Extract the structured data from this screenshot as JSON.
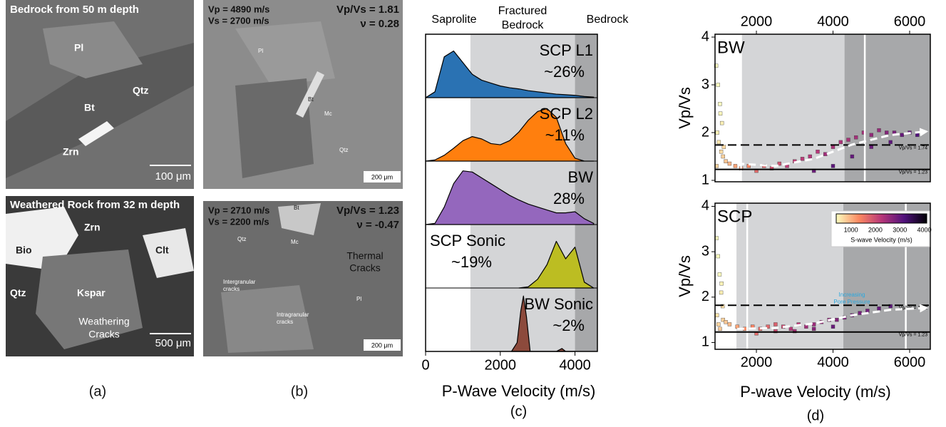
{
  "panel_a": {
    "caption": "(a)",
    "top": {
      "title": "Bedrock from 50 m depth",
      "labels": [
        "Pl",
        "Qtz",
        "Bt",
        "Zrn"
      ],
      "scale_bar": "100 μm"
    },
    "bottom": {
      "title": "Weathered Rock from 32 m depth",
      "labels": [
        "Zrn",
        "Bio",
        "Clt",
        "Qtz",
        "Kspar"
      ],
      "annotation": [
        "Weathering",
        "Cracks"
      ],
      "scale_bar": "500 μm"
    }
  },
  "panel_b": {
    "caption": "(b)",
    "top": {
      "velocities": [
        "Vp = 4890 m/s",
        "Vs = 2700 m/s"
      ],
      "ratios": [
        "Vp/Vs = 1.81",
        "ν = 0.28"
      ],
      "labels": [
        "Pl",
        "Bt",
        "Mc",
        "Qtz"
      ],
      "scale_bar": "200 μm"
    },
    "bottom": {
      "velocities": [
        "Vp = 2710 m/s",
        "Vs = 2200 m/s"
      ],
      "ratios": [
        "Vp/Vs = 1.23",
        "ν = -0.47"
      ],
      "labels": [
        "Bt",
        "Qtz",
        "Mc",
        "Pl"
      ],
      "annotations": [
        [
          "Thermal",
          "Cracks"
        ],
        [
          "Intergranular",
          "cracks"
        ],
        [
          "Intragranular",
          "cracks"
        ]
      ],
      "scale_bar": "200 μm"
    }
  },
  "chart_data": [
    {
      "type": "ridgeline",
      "caption": "(c)",
      "xlabel": "P-Wave Velocity (m/s)",
      "xlim": [
        0,
        4600
      ],
      "xticks": [
        0,
        2000,
        4000
      ],
      "zones": [
        {
          "label": [
            "Saprolite"
          ],
          "range": [
            0,
            1200
          ],
          "color": "#ffffff"
        },
        {
          "label": [
            "Fractured",
            "Bedrock"
          ],
          "range": [
            1200,
            4000
          ],
          "color": "#d4d5d7"
        },
        {
          "label": [
            "Bedrock"
          ],
          "range": [
            4000,
            4600
          ],
          "color": "#a7a8aa"
        }
      ],
      "series": [
        {
          "name": "SCP L1",
          "share": "~26%",
          "color": "#2a72b3",
          "x": [
            0,
            250,
            500,
            750,
            1000,
            1250,
            1500,
            1750,
            2000,
            2250,
            2500,
            2750,
            3000,
            3250,
            3500,
            3750,
            4000,
            4250,
            4500
          ],
          "values": [
            0,
            0.1,
            0.7,
            0.8,
            0.6,
            0.4,
            0.3,
            0.25,
            0.2,
            0.17,
            0.15,
            0.12,
            0.1,
            0.08,
            0.06,
            0.05,
            0.04,
            0.02,
            0.01
          ]
        },
        {
          "name": "SCP L2",
          "share": "~11%",
          "color": "#ff7f0e",
          "x": [
            0,
            250,
            500,
            750,
            1000,
            1250,
            1500,
            1750,
            2000,
            2250,
            2500,
            2750,
            3000,
            3250,
            3500,
            3750,
            4000,
            4250,
            4500
          ],
          "values": [
            0,
            0.02,
            0.1,
            0.22,
            0.35,
            0.42,
            0.38,
            0.3,
            0.28,
            0.35,
            0.5,
            0.7,
            0.85,
            0.9,
            0.75,
            0.3,
            0.05,
            0,
            0
          ]
        },
        {
          "name": "BW",
          "share": "28%",
          "color": "#9467bd",
          "x": [
            0,
            250,
            500,
            750,
            1000,
            1250,
            1500,
            1750,
            2000,
            2250,
            2500,
            2750,
            3000,
            3250,
            3500,
            3750,
            4000,
            4250,
            4500
          ],
          "values": [
            0,
            0.02,
            0.3,
            0.7,
            0.92,
            0.9,
            0.8,
            0.7,
            0.6,
            0.5,
            0.42,
            0.35,
            0.3,
            0.25,
            0.2,
            0.2,
            0.22,
            0.1,
            0.02
          ]
        },
        {
          "name": "SCP Sonic",
          "share": "~19%",
          "color": "#bcbd22",
          "x": [
            2500,
            2750,
            3000,
            3250,
            3500,
            3750,
            4000,
            4250,
            4500
          ],
          "values": [
            0,
            0.02,
            0.15,
            0.4,
            0.8,
            0.5,
            0.7,
            0.1,
            0
          ]
        },
        {
          "name": "BW Sonic",
          "share": "~2%",
          "color": "#8c4a3c",
          "x": [
            2300,
            2450,
            2550,
            2620,
            2700,
            2800,
            3500,
            3650,
            3750,
            4000
          ],
          "values": [
            0,
            0.15,
            0.7,
            0.95,
            0.6,
            0,
            0,
            0.05,
            0,
            0
          ]
        }
      ]
    },
    {
      "type": "scatter",
      "label": "BW",
      "xaxis": "top",
      "xlim": [
        920,
        6540
      ],
      "xticks": [
        2000,
        4000,
        6000
      ],
      "ylim": [
        0.97,
        4.06
      ],
      "yticks": [
        1,
        2,
        3,
        4
      ],
      "ylabel": "Vp/Vs",
      "zones": [
        {
          "range": [
            1600,
            4300
          ],
          "color": "#d4d5d7"
        },
        {
          "range": [
            4300,
            6540
          ],
          "color": "#a7a8aa"
        }
      ],
      "vlines": [
        1600,
        4830
      ],
      "reference_lines": [
        {
          "value": 1.74,
          "label": "Vp/Vs = 1.74",
          "style": "dashed"
        },
        {
          "value": 1.23,
          "label": "Vp/Vs = 1.23",
          "style": "solid"
        }
      ],
      "trend": {
        "x": [
          1500,
          2500,
          3500,
          4500,
          5500,
          6400
        ],
        "y": [
          1.35,
          1.3,
          1.45,
          1.75,
          1.95,
          2.02
        ]
      },
      "x": [
        950,
        1000,
        1050,
        1100,
        980,
        1020,
        1080,
        1130,
        960,
        1060,
        1150,
        1200,
        1300,
        1450,
        1600,
        1800,
        2000,
        2200,
        2400,
        2600,
        2800,
        3000,
        3200,
        3400,
        3600,
        3800,
        4000,
        4200,
        4400,
        4600,
        4800,
        5000,
        5200,
        5400,
        5600,
        5800,
        6000,
        3500,
        4000,
        4500,
        5000,
        5500,
        6200
      ],
      "y": [
        3.4,
        3.0,
        2.6,
        2.2,
        2.0,
        1.8,
        1.6,
        1.5,
        1.3,
        2.4,
        1.7,
        1.4,
        1.35,
        1.3,
        1.25,
        1.3,
        1.2,
        1.3,
        1.25,
        1.35,
        1.3,
        1.4,
        1.45,
        1.5,
        1.6,
        1.55,
        1.7,
        1.8,
        1.85,
        1.9,
        2.0,
        1.95,
        2.05,
        2.0,
        2.0,
        1.95,
        2.0,
        1.2,
        1.3,
        1.5,
        1.7,
        1.8,
        1.95
      ]
    },
    {
      "type": "scatter",
      "label": "SCP",
      "xaxis": "bottom",
      "xlabel": "P-wave Velocity (m/s)",
      "caption": "(d)",
      "xlim": [
        920,
        6540
      ],
      "xticks": [
        2000,
        4000,
        6000
      ],
      "ylim": [
        0.85,
        4.07
      ],
      "yticks": [
        1,
        2,
        3,
        4
      ],
      "ylabel": "Vp/Vs",
      "zones": [
        {
          "range": [
            1480,
            4270
          ],
          "color": "#d4d5d7"
        },
        {
          "range": [
            4270,
            6540
          ],
          "color": "#a7a8aa"
        }
      ],
      "vlines": [
        1760,
        5900
      ],
      "reference_lines": [
        {
          "value": 1.82,
          "label": "Vp/Vs = 1.82",
          "style": "dashed"
        },
        {
          "value": 1.23,
          "label": "Vp/Vs = 1.23",
          "style": "solid"
        }
      ],
      "trend": {
        "x": [
          1500,
          2500,
          3500,
          4500,
          5500,
          6400
        ],
        "y": [
          1.3,
          1.32,
          1.42,
          1.6,
          1.72,
          1.76
        ]
      },
      "annotation": [
        "Increasing",
        "Pore Pressure"
      ],
      "colorbar": {
        "label": "S-wave Velocity (m/s)",
        "lim": [
          400,
          4100
        ],
        "ticks": [
          1000,
          2000,
          3000,
          4000
        ]
      },
      "x": [
        960,
        1000,
        1040,
        1080,
        1120,
        970,
        1010,
        1050,
        1090,
        1130,
        1200,
        1300,
        1500,
        1700,
        1900,
        2100,
        2300,
        2500,
        2700,
        2900,
        3100,
        3300,
        3500,
        3700,
        3900,
        4100,
        4300,
        4500,
        4700,
        4900,
        5200,
        5500,
        2000,
        2500,
        3000,
        3500,
        4000
      ],
      "y": [
        3.3,
        2.9,
        2.5,
        2.1,
        1.8,
        1.6,
        1.4,
        1.3,
        2.3,
        1.5,
        1.45,
        1.4,
        1.35,
        1.3,
        1.35,
        1.3,
        1.35,
        1.4,
        1.35,
        1.3,
        1.4,
        1.35,
        1.4,
        1.45,
        1.5,
        1.5,
        1.55,
        1.6,
        1.65,
        1.7,
        1.75,
        1.8,
        1.2,
        1.25,
        1.25,
        1.3,
        1.35
      ]
    }
  ]
}
